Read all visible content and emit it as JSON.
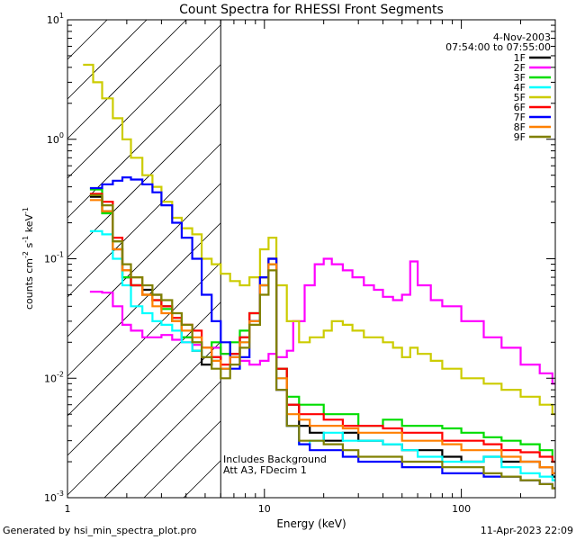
{
  "chart_data": {
    "type": "line",
    "title": "Count Spectra for RHESSI Front Segments",
    "xlabel": "Energy (keV)",
    "ylabel_parts": [
      "counts cm",
      "-2",
      " s",
      "-1",
      " keV",
      "-1"
    ],
    "xscale": "log",
    "yscale": "log",
    "xlim": [
      1,
      300
    ],
    "ylim": [
      0.001,
      10
    ],
    "x_ticks": [
      {
        "value": 1,
        "label": "1"
      },
      {
        "value": 10,
        "label": "10"
      },
      {
        "value": 100,
        "label": "100"
      }
    ],
    "y_ticks": [
      {
        "value": 0.001,
        "base": "10",
        "exp": "-3"
      },
      {
        "value": 0.01,
        "base": "10",
        "exp": "-2"
      },
      {
        "value": 0.1,
        "base": "10",
        "exp": "-1"
      },
      {
        "value": 1,
        "base": "10",
        "exp": "0"
      },
      {
        "value": 10,
        "base": "10",
        "exp": "1"
      }
    ],
    "date": "4-Nov-2003",
    "time_range": "07:54:00 to 07:55:00",
    "hatched_region_max_kev": 6,
    "annotations": [
      "Includes Background",
      "Att A3, FDecim 1"
    ],
    "series": [
      {
        "name": "1F",
        "color": "#000000",
        "x": [
          1.3,
          1.5,
          1.7,
          1.9,
          2.1,
          2.4,
          2.7,
          3.0,
          3.4,
          3.8,
          4.3,
          4.8,
          5.4,
          6.0,
          6.7,
          7.5,
          8.4,
          9.5,
          10.5,
          11.5,
          13,
          15,
          17,
          20,
          25,
          30,
          40,
          50,
          60,
          80,
          100,
          130,
          160,
          200,
          250,
          290
        ],
        "y": [
          0.33,
          0.25,
          0.12,
          0.07,
          0.06,
          0.055,
          0.05,
          0.04,
          0.03,
          0.022,
          0.017,
          0.013,
          0.015,
          0.012,
          0.016,
          0.022,
          0.03,
          0.06,
          0.09,
          0.012,
          0.006,
          0.004,
          0.0035,
          0.003,
          0.0035,
          0.003,
          0.0028,
          0.0025,
          0.0025,
          0.0022,
          0.002,
          0.0022,
          0.002,
          0.002,
          0.0018,
          0.0015
        ]
      },
      {
        "name": "2F",
        "color": "#ff00ff",
        "x": [
          1.3,
          1.5,
          1.7,
          1.9,
          2.1,
          2.4,
          2.7,
          3.0,
          3.4,
          3.8,
          4.3,
          4.8,
          5.4,
          6.0,
          6.7,
          7.5,
          8.4,
          9.5,
          10.5,
          11.5,
          13,
          14,
          16,
          18,
          20,
          22,
          25,
          28,
          32,
          36,
          40,
          45,
          50,
          55,
          60,
          70,
          80,
          100,
          130,
          160,
          200,
          250,
          290
        ],
        "y": [
          0.053,
          0.052,
          0.04,
          0.028,
          0.025,
          0.022,
          0.022,
          0.023,
          0.021,
          0.02,
          0.019,
          0.018,
          0.018,
          0.016,
          0.015,
          0.014,
          0.013,
          0.014,
          0.016,
          0.015,
          0.017,
          0.03,
          0.06,
          0.09,
          0.1,
          0.09,
          0.08,
          0.07,
          0.06,
          0.055,
          0.048,
          0.045,
          0.05,
          0.095,
          0.06,
          0.045,
          0.04,
          0.03,
          0.022,
          0.018,
          0.013,
          0.011,
          0.009
        ]
      },
      {
        "name": "3F",
        "color": "#00dd00",
        "x": [
          1.3,
          1.5,
          1.7,
          1.9,
          2.1,
          2.4,
          2.7,
          3.0,
          3.4,
          3.8,
          4.3,
          4.8,
          5.4,
          6.0,
          6.7,
          7.5,
          8.4,
          9.5,
          10.5,
          11.5,
          13,
          15,
          17,
          20,
          25,
          30,
          40,
          50,
          60,
          80,
          100,
          130,
          160,
          200,
          250,
          290
        ],
        "y": [
          0.38,
          0.24,
          0.14,
          0.07,
          0.06,
          0.05,
          0.045,
          0.038,
          0.03,
          0.022,
          0.02,
          0.018,
          0.02,
          0.016,
          0.02,
          0.025,
          0.035,
          0.07,
          0.1,
          0.012,
          0.007,
          0.006,
          0.006,
          0.005,
          0.005,
          0.004,
          0.0045,
          0.004,
          0.004,
          0.0038,
          0.0035,
          0.0032,
          0.003,
          0.0028,
          0.0025,
          0.002
        ]
      },
      {
        "name": "4F",
        "color": "#00ffff",
        "x": [
          1.3,
          1.5,
          1.7,
          1.9,
          2.1,
          2.4,
          2.7,
          3.0,
          3.4,
          3.8,
          4.3,
          4.8,
          5.4,
          6.0,
          6.7,
          7.5,
          8.4,
          9.5,
          10.5,
          11.5,
          13,
          15,
          17,
          20,
          25,
          30,
          40,
          50,
          60,
          80,
          100,
          130,
          160,
          200,
          250,
          290
        ],
        "y": [
          0.17,
          0.16,
          0.1,
          0.06,
          0.04,
          0.035,
          0.03,
          0.028,
          0.025,
          0.02,
          0.017,
          0.015,
          0.014,
          0.012,
          0.015,
          0.02,
          0.03,
          0.06,
          0.09,
          0.01,
          0.004,
          0.0028,
          0.003,
          0.0035,
          0.003,
          0.003,
          0.0028,
          0.0025,
          0.0022,
          0.002,
          0.002,
          0.0022,
          0.0018,
          0.0016,
          0.0015,
          0.0014
        ]
      },
      {
        "name": "5F",
        "color": "#cccc00",
        "x": [
          1.2,
          1.35,
          1.5,
          1.7,
          1.9,
          2.1,
          2.4,
          2.7,
          3.0,
          3.4,
          3.8,
          4.3,
          4.8,
          5.4,
          6.0,
          6.7,
          7.5,
          8.4,
          9.5,
          10.5,
          11.5,
          13,
          15,
          17,
          20,
          22,
          25,
          28,
          32,
          36,
          40,
          45,
          50,
          55,
          60,
          70,
          80,
          100,
          130,
          160,
          200,
          250,
          290
        ],
        "y": [
          4.2,
          3.0,
          2.2,
          1.5,
          1.0,
          0.7,
          0.5,
          0.4,
          0.3,
          0.22,
          0.18,
          0.16,
          0.1,
          0.09,
          0.075,
          0.065,
          0.06,
          0.07,
          0.12,
          0.15,
          0.06,
          0.03,
          0.02,
          0.022,
          0.025,
          0.03,
          0.028,
          0.025,
          0.022,
          0.022,
          0.02,
          0.018,
          0.015,
          0.018,
          0.016,
          0.014,
          0.012,
          0.01,
          0.009,
          0.008,
          0.007,
          0.006,
          0.005
        ]
      },
      {
        "name": "6F",
        "color": "#ff0000",
        "x": [
          1.3,
          1.5,
          1.7,
          1.9,
          2.1,
          2.4,
          2.7,
          3.0,
          3.4,
          3.8,
          4.3,
          4.8,
          5.4,
          6.0,
          6.7,
          7.5,
          8.4,
          9.5,
          10.5,
          11.5,
          13,
          15,
          17,
          20,
          25,
          30,
          40,
          50,
          60,
          80,
          100,
          130,
          160,
          200,
          250,
          290
        ],
        "y": [
          0.35,
          0.3,
          0.15,
          0.08,
          0.06,
          0.05,
          0.045,
          0.04,
          0.032,
          0.028,
          0.025,
          0.018,
          0.015,
          0.013,
          0.016,
          0.022,
          0.035,
          0.07,
          0.1,
          0.012,
          0.006,
          0.005,
          0.005,
          0.0045,
          0.004,
          0.004,
          0.0038,
          0.0035,
          0.0035,
          0.003,
          0.003,
          0.0028,
          0.0025,
          0.0024,
          0.0022,
          0.002
        ]
      },
      {
        "name": "7F",
        "color": "#0000ff",
        "x": [
          1.3,
          1.5,
          1.7,
          1.9,
          2.1,
          2.4,
          2.7,
          3.0,
          3.4,
          3.8,
          4.3,
          4.8,
          5.4,
          6.0,
          6.7,
          7.5,
          8.4,
          9.5,
          10.5,
          11.5,
          13,
          15,
          17,
          20,
          25,
          30,
          40,
          50,
          60,
          80,
          100,
          130,
          160,
          200,
          250,
          290
        ],
        "y": [
          0.39,
          0.42,
          0.45,
          0.48,
          0.46,
          0.42,
          0.36,
          0.28,
          0.2,
          0.15,
          0.1,
          0.05,
          0.03,
          0.02,
          0.012,
          0.015,
          0.03,
          0.07,
          0.1,
          0.008,
          0.004,
          0.0028,
          0.0025,
          0.0025,
          0.0022,
          0.002,
          0.002,
          0.0018,
          0.0018,
          0.0016,
          0.0016,
          0.0015,
          0.0015,
          0.0014,
          0.0013,
          0.0012
        ]
      },
      {
        "name": "8F",
        "color": "#ff8000",
        "x": [
          1.3,
          1.5,
          1.7,
          1.9,
          2.1,
          2.4,
          2.7,
          3.0,
          3.4,
          3.8,
          4.3,
          4.8,
          5.4,
          6.0,
          6.7,
          7.5,
          8.4,
          9.5,
          10.5,
          11.5,
          13,
          15,
          17,
          20,
          25,
          30,
          40,
          50,
          60,
          80,
          100,
          130,
          160,
          200,
          250,
          290
        ],
        "y": [
          0.31,
          0.25,
          0.12,
          0.08,
          0.07,
          0.05,
          0.04,
          0.035,
          0.03,
          0.025,
          0.022,
          0.018,
          0.014,
          0.012,
          0.015,
          0.02,
          0.03,
          0.06,
          0.09,
          0.01,
          0.005,
          0.0045,
          0.004,
          0.004,
          0.0038,
          0.0035,
          0.0035,
          0.003,
          0.003,
          0.0028,
          0.0025,
          0.0025,
          0.0022,
          0.002,
          0.0018,
          0.0016
        ]
      },
      {
        "name": "9F",
        "color": "#808000",
        "x": [
          1.3,
          1.5,
          1.7,
          1.9,
          2.1,
          2.4,
          2.7,
          3.0,
          3.4,
          3.8,
          4.3,
          4.8,
          5.4,
          6.0,
          6.7,
          7.5,
          8.4,
          9.5,
          10.5,
          11.5,
          13,
          15,
          17,
          20,
          25,
          30,
          40,
          50,
          60,
          80,
          100,
          130,
          160,
          200,
          250,
          290
        ],
        "y": [
          0.34,
          0.28,
          0.14,
          0.09,
          0.07,
          0.06,
          0.05,
          0.045,
          0.035,
          0.028,
          0.02,
          0.015,
          0.012,
          0.01,
          0.013,
          0.018,
          0.028,
          0.05,
          0.08,
          0.008,
          0.004,
          0.003,
          0.003,
          0.0028,
          0.0025,
          0.0022,
          0.0022,
          0.002,
          0.002,
          0.0018,
          0.0018,
          0.0016,
          0.0015,
          0.0014,
          0.0013,
          0.0012
        ]
      }
    ]
  },
  "footer": {
    "generated_by": "Generated by hsi_min_spectra_plot.pro",
    "timestamp": "11-Apr-2023 22:09"
  }
}
